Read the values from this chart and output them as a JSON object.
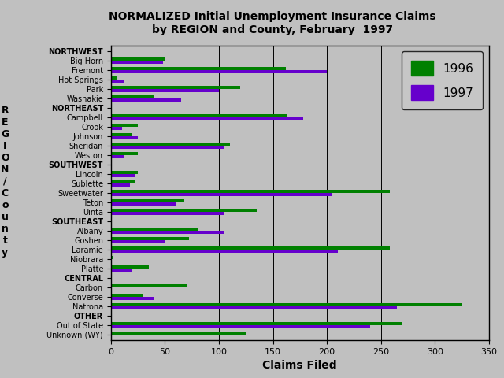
{
  "title_line1": "NORMALIZED Initial Unemployment Insurance Claims",
  "title_line2": "by REGION and County, February  1997",
  "xlabel": "Claims Filed",
  "xlim": [
    0,
    350
  ],
  "xticks": [
    0,
    50,
    100,
    150,
    200,
    250,
    300,
    350
  ],
  "background_color": "#c0c0c0",
  "color_1996": "#008000",
  "color_1997": "#6600cc",
  "categories": [
    "NORTHWEST",
    "Big Horn",
    "Fremont",
    "Hot Springs",
    "Park",
    "Washakie",
    "NORTHEAST",
    "Campbell",
    "Crook",
    "Johnson",
    "Sheridan",
    "Weston",
    "SOUTHWEST",
    "Lincoln",
    "Sublette",
    "Sweetwater",
    "Teton",
    "Uinta",
    "SOUTHEAST",
    "Albany",
    "Goshen",
    "Laramie",
    "Niobrara",
    "Platte",
    "CENTRAL",
    "Carbon",
    "Converse",
    "Natrona",
    "OTHER",
    "Out of State",
    "Unknown (WY)"
  ],
  "values_1996": [
    0,
    50,
    162,
    5,
    120,
    40,
    0,
    163,
    25,
    20,
    110,
    25,
    0,
    25,
    22,
    258,
    68,
    135,
    0,
    80,
    72,
    258,
    2,
    35,
    0,
    70,
    30,
    325,
    0,
    270,
    125
  ],
  "values_1997": [
    0,
    48,
    200,
    12,
    100,
    65,
    0,
    178,
    10,
    25,
    105,
    12,
    0,
    22,
    18,
    205,
    60,
    105,
    0,
    105,
    50,
    210,
    0,
    20,
    0,
    0,
    40,
    265,
    0,
    240,
    0
  ],
  "header_indices": [
    0,
    6,
    12,
    18,
    24,
    28
  ],
  "ylabel_lines": [
    "R",
    "E",
    "G",
    "I",
    "O",
    "N",
    "/",
    "C",
    "o",
    "u",
    "n",
    "t",
    "y"
  ]
}
